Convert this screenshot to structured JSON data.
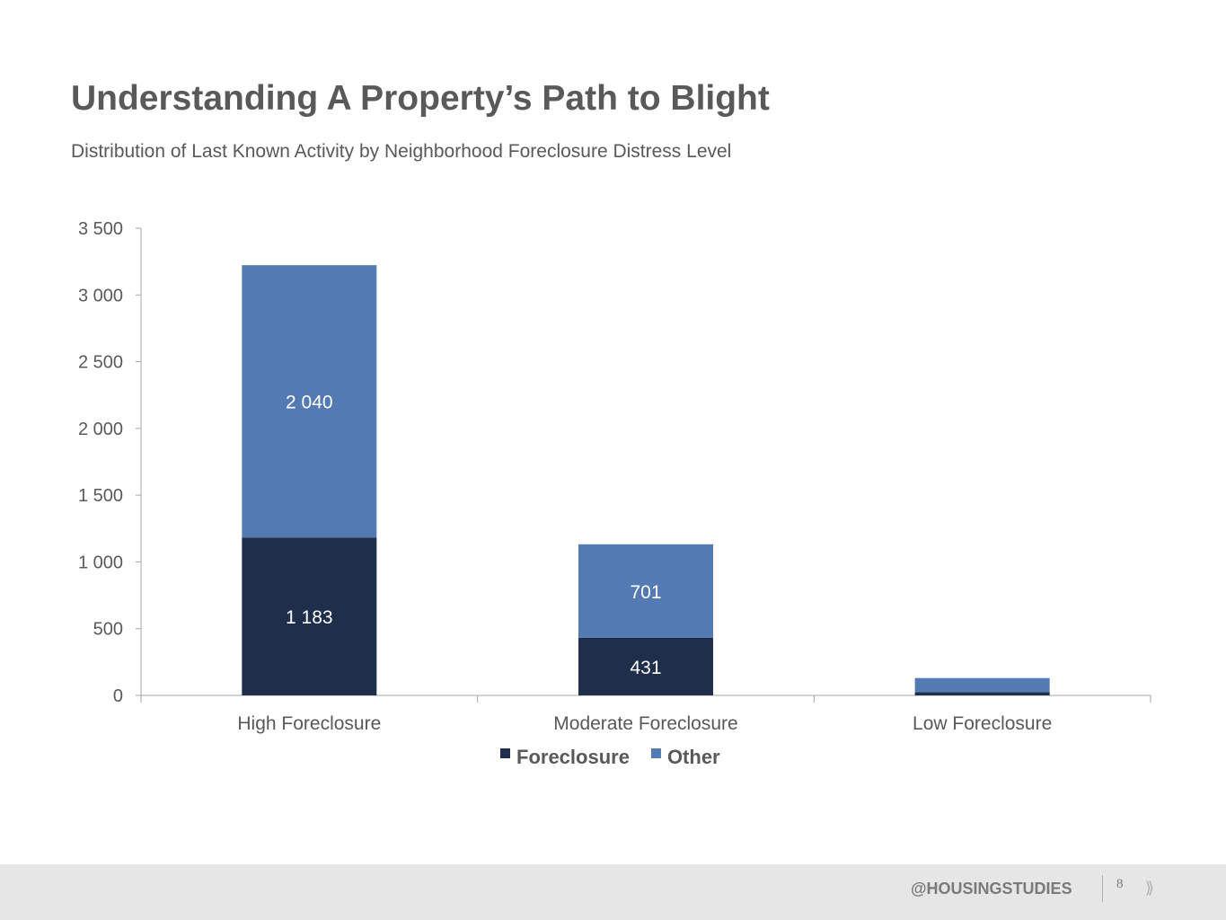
{
  "header": {
    "title": "Understanding A Property’s Path to Blight",
    "subtitle": "Distribution of Last Known Activity by Neighborhood Foreclosure Distress Level"
  },
  "chart_data": {
    "type": "bar",
    "stacked": true,
    "categories": [
      "High Foreclosure",
      "Moderate Foreclosure",
      "Low Foreclosure"
    ],
    "series": [
      {
        "name": "Foreclosure",
        "values": [
          1183,
          431,
          25
        ],
        "labels": [
          "1 183",
          "431",
          ""
        ],
        "color": "#1f2f4b"
      },
      {
        "name": "Other",
        "values": [
          2040,
          701,
          105
        ],
        "labels": [
          "2 040",
          "701",
          ""
        ],
        "color": "#547ab4"
      }
    ],
    "ylim": [
      0,
      3500
    ],
    "yticks": [
      0,
      500,
      1000,
      1500,
      2000,
      2500,
      3000,
      3500
    ],
    "ytick_labels": [
      "0",
      "500",
      "1 000",
      "1 500",
      "2 000",
      "2 500",
      "3 000",
      "3 500"
    ],
    "legend": "bottom",
    "grid": false
  },
  "footer": {
    "handle": "@HOUSINGSTUDIES",
    "page_number": "8",
    "next_glyph": "⟫"
  }
}
